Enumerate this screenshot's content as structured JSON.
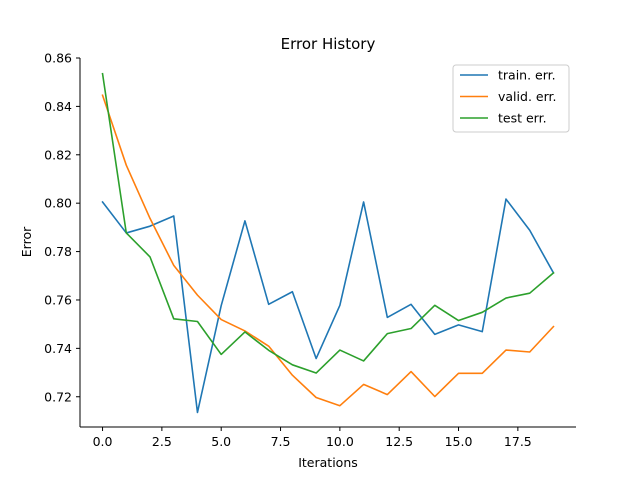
{
  "chart_data": {
    "type": "line",
    "title": "Error History",
    "xlabel": "Iterations",
    "ylabel": "Error",
    "xlim": [
      -0.95,
      19.95
    ],
    "ylim": [
      0.7075,
      0.86
    ],
    "x": [
      0,
      1,
      2,
      3,
      4,
      5,
      6,
      7,
      8,
      9,
      10,
      11,
      12,
      13,
      14,
      15,
      16,
      17,
      18,
      19
    ],
    "xticks": [
      0.0,
      2.5,
      5.0,
      7.5,
      10.0,
      12.5,
      15.0,
      17.5
    ],
    "xtick_labels": [
      "0.0",
      "2.5",
      "5.0",
      "7.5",
      "10.0",
      "12.5",
      "15.0",
      "17.5"
    ],
    "yticks": [
      0.72,
      0.74,
      0.76,
      0.78,
      0.8,
      0.82,
      0.84,
      0.86
    ],
    "ytick_labels": [
      "0.72",
      "0.74",
      "0.76",
      "0.78",
      "0.80",
      "0.82",
      "0.84",
      "0.86"
    ],
    "legend_position": "top-right",
    "grid": false,
    "series": [
      {
        "name": "train. err.",
        "color": "#1f77b4",
        "values": [
          0.8005,
          0.7877,
          0.7905,
          0.7947,
          0.7135,
          0.7577,
          0.7927,
          0.7582,
          0.7634,
          0.7358,
          0.7578,
          0.8005,
          0.7528,
          0.7582,
          0.7458,
          0.7497,
          0.7469,
          0.8017,
          0.7888,
          0.7712
        ]
      },
      {
        "name": "valid. err.",
        "color": "#ff7f0e",
        "values": [
          0.8446,
          0.8157,
          0.7937,
          0.7743,
          0.762,
          0.7519,
          0.7472,
          0.7409,
          0.7289,
          0.7197,
          0.7163,
          0.7251,
          0.7209,
          0.7304,
          0.7201,
          0.7297,
          0.7297,
          0.7393,
          0.7385,
          0.749
        ]
      },
      {
        "name": "test err.",
        "color": "#2ca02c",
        "values": [
          0.8535,
          0.7877,
          0.7778,
          0.7522,
          0.7511,
          0.7375,
          0.7468,
          0.7392,
          0.7332,
          0.7298,
          0.7393,
          0.7348,
          0.7461,
          0.7482,
          0.7578,
          0.7515,
          0.7549,
          0.7608,
          0.7628,
          0.7712
        ]
      }
    ]
  }
}
